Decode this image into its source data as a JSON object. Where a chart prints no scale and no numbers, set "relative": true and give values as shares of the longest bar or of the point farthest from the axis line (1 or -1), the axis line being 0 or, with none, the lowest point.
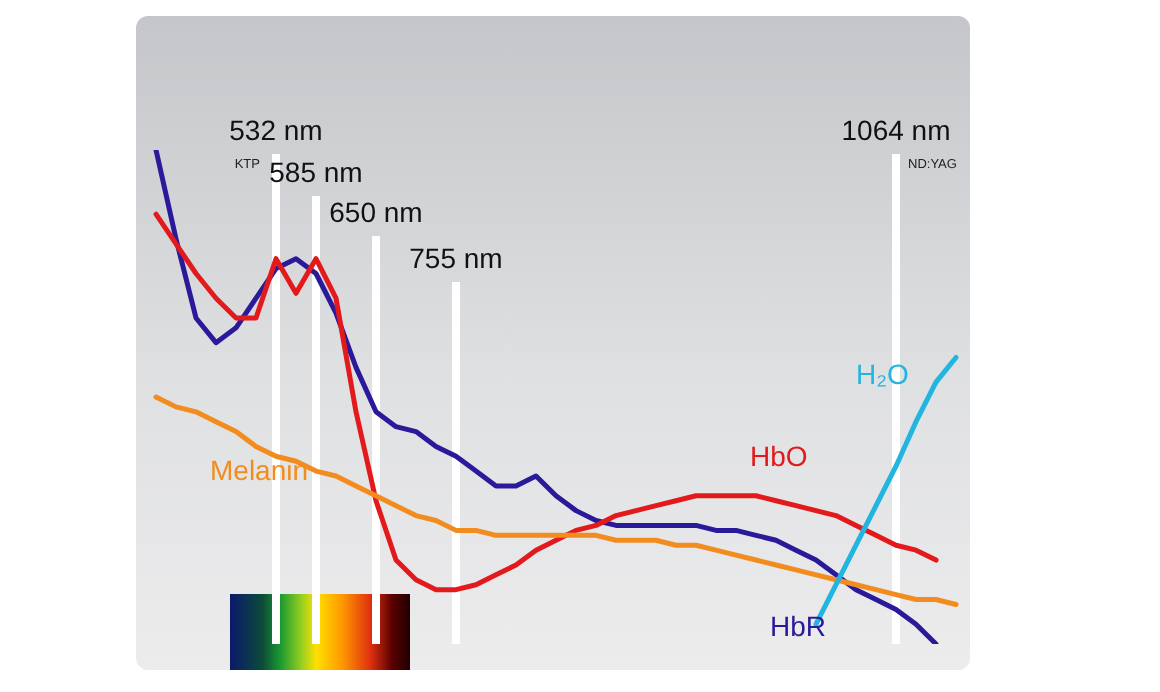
{
  "chart_data": {
    "type": "line",
    "relative": true,
    "marker": "none",
    "line_style": "solid",
    "categories": [
      null,
      null,
      null,
      null,
      null,
      null,
      "532 nm",
      null,
      "585 nm",
      null,
      null,
      "650 nm",
      null,
      null,
      null,
      "755 nm",
      null,
      null,
      null,
      null,
      null,
      null,
      null,
      null,
      null,
      null,
      null,
      null,
      null,
      null,
      null,
      null,
      null,
      null,
      null,
      null,
      null,
      "1064 nm",
      null,
      null,
      null
    ],
    "series": [
      {
        "name": "HbR",
        "color": "#2a1a9a",
        "values": [
          1.0,
          0.82,
          0.66,
          0.61,
          0.64,
          0.7,
          0.76,
          0.78,
          0.75,
          0.67,
          0.56,
          0.47,
          0.44,
          0.43,
          0.4,
          0.38,
          0.35,
          0.32,
          0.32,
          0.34,
          0.3,
          0.27,
          0.25,
          0.24,
          0.24,
          0.24,
          0.24,
          0.24,
          0.23,
          0.23,
          0.22,
          0.21,
          0.19,
          0.17,
          0.14,
          0.11,
          0.09,
          0.07,
          0.04,
          0.0,
          null
        ]
      },
      {
        "name": "HbO",
        "color": "#e31a1c",
        "values": [
          0.87,
          0.81,
          0.75,
          0.7,
          0.66,
          0.66,
          0.78,
          0.71,
          0.78,
          0.7,
          0.47,
          0.29,
          0.17,
          0.13,
          0.11,
          0.11,
          0.12,
          0.14,
          0.16,
          0.19,
          0.21,
          0.23,
          0.24,
          0.26,
          0.27,
          0.28,
          0.29,
          0.3,
          0.3,
          0.3,
          0.3,
          0.29,
          0.28,
          0.27,
          0.26,
          0.24,
          0.22,
          0.2,
          0.19,
          0.17,
          null
        ]
      },
      {
        "name": "Melanin",
        "color": "#f28c1e",
        "values": [
          0.5,
          0.48,
          0.47,
          0.45,
          0.43,
          0.4,
          0.38,
          0.37,
          0.35,
          0.34,
          0.32,
          0.3,
          0.28,
          0.26,
          0.25,
          0.23,
          0.23,
          0.22,
          0.22,
          0.22,
          0.22,
          0.22,
          0.22,
          0.21,
          0.21,
          0.21,
          0.2,
          0.2,
          0.19,
          0.18,
          0.17,
          0.16,
          0.15,
          0.14,
          0.13,
          0.12,
          0.11,
          0.1,
          0.09,
          0.09,
          0.08
        ]
      },
      {
        "name": "H₂O",
        "color": "#22b5e0",
        "values": [
          null,
          null,
          null,
          null,
          null,
          null,
          null,
          null,
          null,
          null,
          null,
          null,
          null,
          null,
          null,
          null,
          null,
          null,
          null,
          null,
          null,
          null,
          null,
          null,
          null,
          null,
          null,
          null,
          null,
          null,
          null,
          null,
          null,
          0.04,
          0.12,
          0.2,
          0.28,
          0.36,
          0.45,
          0.53,
          0.58
        ]
      }
    ],
    "ref_lines": [
      {
        "axis": "x",
        "value": "532 nm",
        "color": "#ffffff"
      },
      {
        "axis": "x",
        "value": "585 nm",
        "color": "#ffffff"
      },
      {
        "axis": "x",
        "value": "650 nm",
        "color": "#ffffff"
      },
      {
        "axis": "x",
        "value": "755 nm",
        "color": "#ffffff"
      },
      {
        "axis": "x",
        "value": "1064 nm",
        "color": "#ffffff"
      }
    ],
    "annotations": [
      "KTP",
      "ND:YAG"
    ]
  }
}
